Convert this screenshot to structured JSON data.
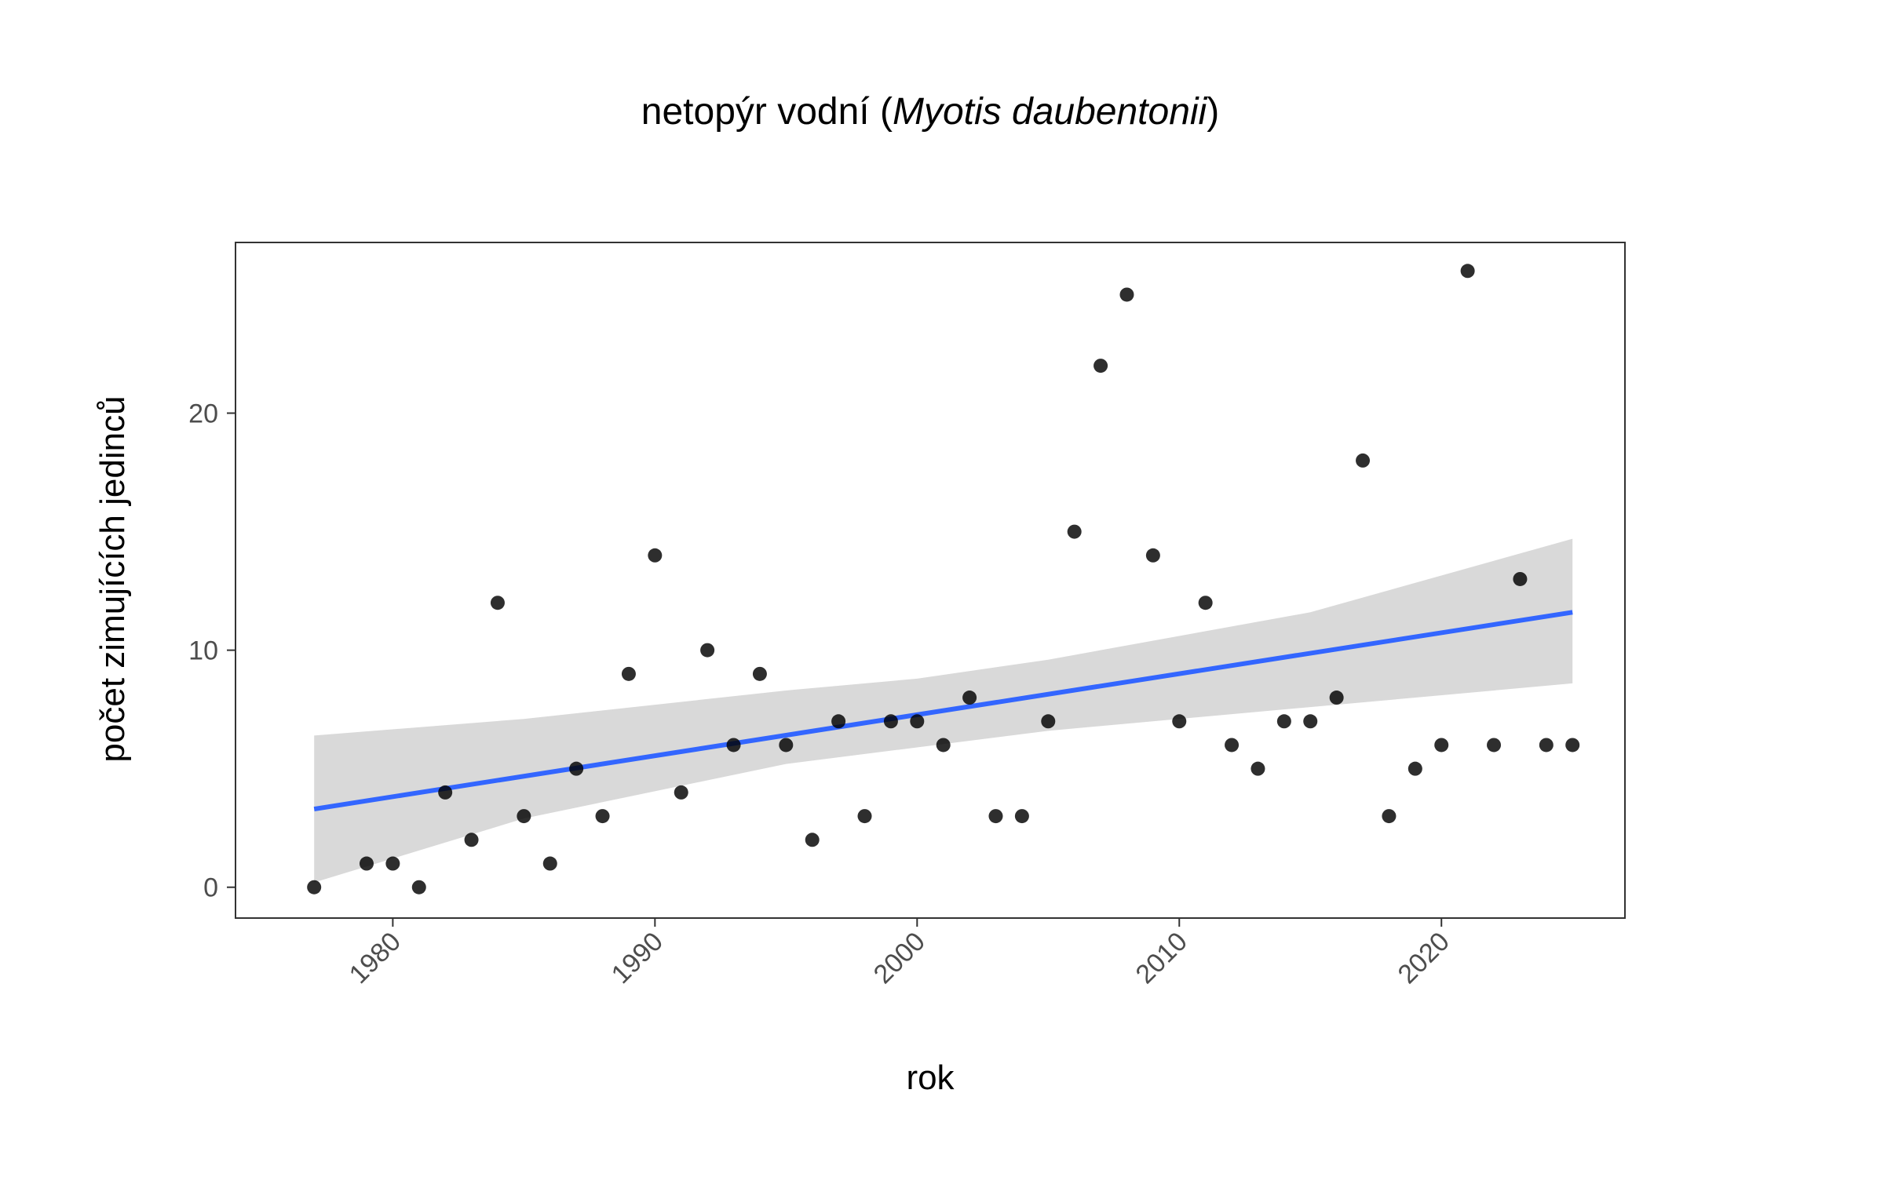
{
  "chart_data": {
    "type": "scatter",
    "title": {
      "prefix": "netopýr vodní (",
      "species": "Myotis daubentonii",
      "suffix": ")"
    },
    "xlabel": "rok",
    "ylabel": "počet zimujících jedinců",
    "xlim": [
      1974,
      2027
    ],
    "ylim": [
      -1.3,
      27.2
    ],
    "x_ticks": [
      1980,
      1990,
      2000,
      2010,
      2020
    ],
    "y_ticks": [
      0,
      10,
      20
    ],
    "grid": false,
    "legend": "none",
    "series": [
      {
        "kind": "points",
        "color": "#000000",
        "x": [
          1977,
          1979,
          1980,
          1981,
          1982,
          1983,
          1984,
          1985,
          1986,
          1987,
          1988,
          1989,
          1990,
          1991,
          1992,
          1993,
          1994,
          1995,
          1996,
          1997,
          1998,
          1999,
          2000,
          2001,
          2002,
          2003,
          2004,
          2005,
          2006,
          2007,
          2008,
          2009,
          2010,
          2011,
          2012,
          2013,
          2014,
          2015,
          2016,
          2017,
          2018,
          2019,
          2020,
          2021,
          2022,
          2023,
          2024,
          2025
        ],
        "y": [
          0,
          1,
          1,
          0,
          4,
          2,
          12,
          3,
          1,
          5,
          3,
          9,
          14,
          4,
          10,
          6,
          9,
          6,
          2,
          7,
          3,
          7,
          7,
          6,
          8,
          3,
          3,
          7,
          15,
          22,
          25,
          14,
          7,
          12,
          6,
          5,
          7,
          7,
          8,
          18,
          3,
          5,
          6,
          26,
          6,
          13,
          6,
          6
        ]
      },
      {
        "kind": "trend-line",
        "color": "#3366ff",
        "x": [
          1977,
          2025
        ],
        "y": [
          3.3,
          11.6
        ]
      },
      {
        "kind": "confidence-band",
        "color": "#d9d9d9",
        "x": [
          1977,
          1985,
          1995,
          2000,
          2005,
          2015,
          2025
        ],
        "lower": [
          0.2,
          2.9,
          5.2,
          5.9,
          6.6,
          7.6,
          8.6
        ],
        "upper": [
          6.4,
          7.1,
          8.3,
          8.8,
          9.6,
          11.6,
          14.7
        ]
      }
    ]
  }
}
